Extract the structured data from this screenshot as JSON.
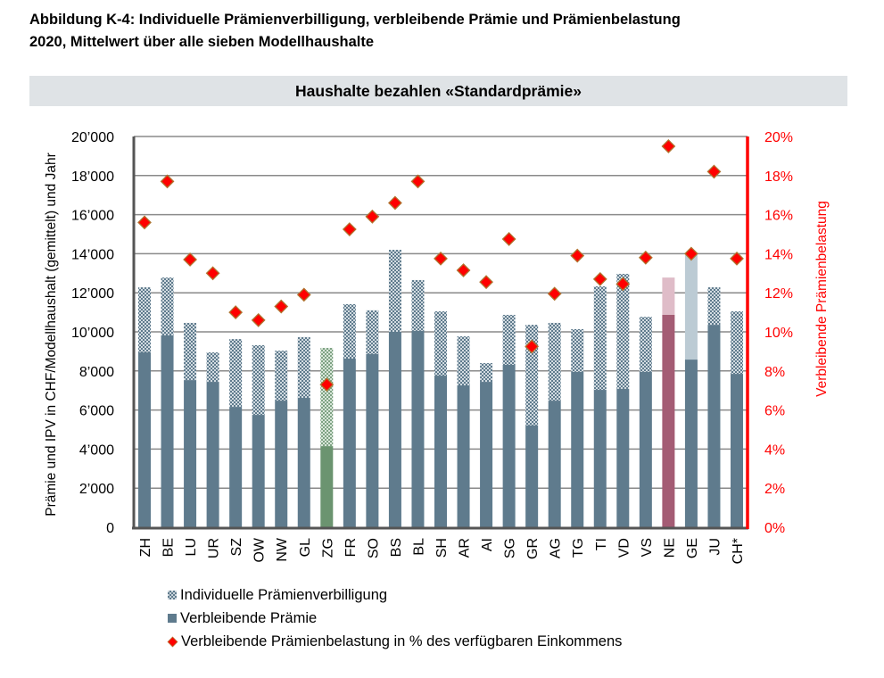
{
  "figure": {
    "title_line1": "Abbildung K-4:  Individuelle Prämienverbilligung, verbleibende Prämie und Prämienbelastung",
    "title_line2": "2020, Mittelwert über alle sieben Modellhaushalte",
    "banner": "Haushalte bezahlen «Standardprämie»"
  },
  "colors": {
    "remaining": "#5f7b8d",
    "ipv_pattern": "#5f7b8d",
    "zg_remaining": "#6b9470",
    "zg_ipv_pattern": "#7ea283",
    "ne_remaining": "#a45c74",
    "ne_ipv": "#dfbcc8",
    "ge_ipv": "#bccbd4",
    "diamond_fill": "#ff0000",
    "diamond_edge": "#b0722e",
    "right_axis": "#ff0000",
    "grid": "#8a8a8a"
  },
  "chart_data": {
    "type": "bar",
    "stacked": true,
    "title": "Haushalte bezahlen «Standardprämie»",
    "xlabel": "",
    "ylabel": "Prämie und IPV in CHF/Modellhaushalt (gemittelt) und Jahr",
    "ylabel_right": "Verbleibende Prämienbelastung",
    "ylim": [
      0,
      20000
    ],
    "ylim_right": [
      0,
      20
    ],
    "yticks": [
      "0",
      "2’000",
      "4’000",
      "6’000",
      "8’000",
      "10’000",
      "12’000",
      "14’000",
      "16’000",
      "18’000",
      "20’000"
    ],
    "yticks_right": [
      "0%",
      "2%",
      "4%",
      "6%",
      "8%",
      "10%",
      "12%",
      "14%",
      "16%",
      "18%",
      "20%"
    ],
    "grid": true,
    "legend_position": "bottom-left",
    "categories": [
      "ZH",
      "BE",
      "LU",
      "UR",
      "SZ",
      "OW",
      "NW",
      "GL",
      "ZG",
      "FR",
      "SO",
      "BS",
      "BL",
      "SH",
      "AR",
      "AI",
      "SG",
      "GR",
      "AG",
      "TG",
      "TI",
      "VD",
      "VS",
      "NE",
      "GE",
      "JU",
      "CH*"
    ],
    "series": [
      {
        "name": "Verbleibende Prämie",
        "kind": "bar",
        "axis": "left",
        "values": [
          8950,
          9820,
          7530,
          7440,
          6160,
          5750,
          6480,
          6620,
          4150,
          8630,
          8860,
          10000,
          10050,
          7760,
          7260,
          7440,
          8310,
          5210,
          6480,
          7950,
          7030,
          7080,
          7950,
          10870,
          8580,
          10360,
          7850
        ]
      },
      {
        "name": "Individuelle Prämienverbilligung",
        "kind": "bar",
        "axis": "left",
        "values": [
          3330,
          2960,
          2930,
          1510,
          3470,
          3570,
          2560,
          3110,
          5030,
          2790,
          2240,
          4200,
          2600,
          3290,
          2510,
          960,
          2560,
          5150,
          3980,
          2190,
          5300,
          5890,
          2820,
          1910,
          5350,
          1920,
          3200
        ]
      },
      {
        "name": "Verbleibende Prämienbelastung in % des verfügbaren Einkommens",
        "kind": "scatter",
        "axis": "right",
        "values": [
          15.6,
          17.7,
          13.7,
          13.0,
          11.0,
          10.6,
          11.3,
          11.9,
          7.3,
          15.25,
          15.9,
          16.6,
          17.7,
          13.75,
          13.15,
          12.55,
          14.75,
          9.25,
          11.95,
          13.9,
          12.7,
          12.45,
          13.8,
          19.5,
          14.0,
          18.2,
          13.75
        ]
      }
    ],
    "highlight": {
      "ZG": "green",
      "NE": "mauve",
      "GE": "light-solid-ipv"
    }
  },
  "legend": {
    "items": [
      {
        "label": "Individuelle Prämienverbilligung",
        "icon": "hatched-square"
      },
      {
        "label": "Verbleibende Prämie",
        "icon": "solid-square"
      },
      {
        "label": "Verbleibende Prämienbelastung in % des verfügbaren Einkommens",
        "icon": "red-diamond"
      }
    ]
  }
}
